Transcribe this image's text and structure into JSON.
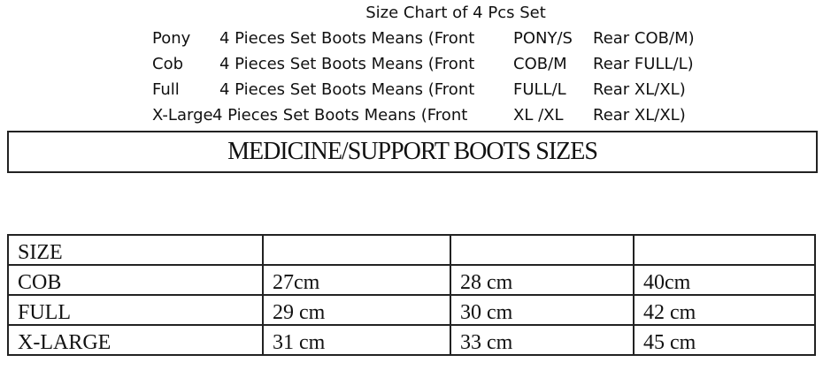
{
  "header": {
    "title": "Size Chart of 4 Pcs Set"
  },
  "set_rows": [
    {
      "size": "Pony",
      "desc": "4 Pieces Set Boots Means (Front",
      "front": "PONY/S",
      "rear": "Rear COB/M)"
    },
    {
      "size": "Cob",
      "desc": "4 Pieces Set Boots Means (Front",
      "front": "COB/M",
      "rear": "Rear FULL/L)"
    },
    {
      "size": "Full",
      "desc": "4 Pieces Set Boots Means (Front",
      "front": "FULL/L",
      "rear": "Rear XL/XL)"
    },
    {
      "size": "X-Large",
      "desc": "4 Pieces Set Boots Means (Front",
      "front": "XL /XL",
      "rear": "Rear XL/XL)"
    }
  ],
  "banner": "MEDICINE/SUPPORT BOOTS SIZES",
  "table": {
    "header": [
      "SIZE",
      "",
      "",
      ""
    ],
    "rows": [
      [
        "COB",
        "27cm",
        "28 cm",
        "40cm"
      ],
      [
        "FULL",
        "29 cm",
        "30 cm",
        "42 cm"
      ],
      [
        "X-LARGE",
        "31 cm",
        "33 cm",
        "45 cm"
      ]
    ]
  }
}
